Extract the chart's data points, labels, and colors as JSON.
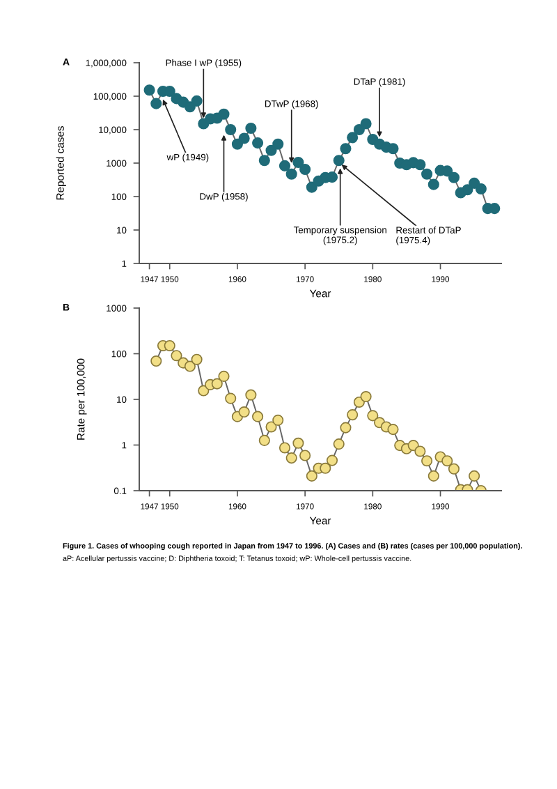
{
  "chart_data": [
    {
      "type": "line",
      "xlabel": "Year",
      "ylabel": "Reported cases",
      "log": "y",
      "grid": false,
      "marker": "circle",
      "line_style": "solid",
      "xlim": [
        1945.5,
        1999
      ],
      "xticks": [
        1947,
        1950,
        1960,
        1970,
        1980,
        1990
      ],
      "ylim": [
        1,
        1000000
      ],
      "yticks": [
        1,
        10,
        100,
        1000,
        {
          "value": 10000,
          "label": "10,000"
        },
        {
          "value": 100000,
          "label": "100,000"
        },
        {
          "value": 1000000,
          "label": "1,000,000"
        }
      ],
      "x": [
        1947,
        1948,
        1949,
        1950,
        1951,
        1952,
        1953,
        1954,
        1955,
        1956,
        1957,
        1958,
        1959,
        1960,
        1961,
        1962,
        1963,
        1964,
        1965,
        1966,
        1967,
        1968,
        1969,
        1970,
        1971,
        1972,
        1973,
        1974,
        1975,
        1976,
        1977,
        1978,
        1979,
        1980,
        1981,
        1982,
        1983,
        1984,
        1985,
        1986,
        1987,
        1988,
        1989,
        1990,
        1991,
        1992,
        1993,
        1994,
        1995,
        1996,
        1997,
        1998
      ],
      "series": [
        {
          "color": "#1f6b78",
          "values": [
            152000,
            60000,
            140000,
            140000,
            85000,
            66000,
            48000,
            72000,
            15000,
            21000,
            22000,
            29000,
            10000,
            3700,
            5500,
            11000,
            4000,
            1200,
            2400,
            3700,
            830,
            470,
            1050,
            650,
            190,
            290,
            370,
            380,
            1200,
            2700,
            5800,
            10000,
            15000,
            5100,
            3700,
            3000,
            2700,
            1000,
            900,
            1030,
            900,
            470,
            230,
            600,
            580,
            370,
            130,
            160,
            250,
            170,
            44,
            44
          ]
        }
      ],
      "annotations": [
        "A",
        {
          "text": "wP (1949)",
          "x": 1949,
          "y": 80000
        },
        {
          "text": "Phase I wP (1955)",
          "x": 1955,
          "y": 22000
        },
        {
          "text": "DwP (1958)",
          "x": 1958,
          "y": 7000
        },
        {
          "text": "DTwP (1968)",
          "x": 1968,
          "y": 1000
        },
        {
          "text": "DTaP (1981)",
          "x": 1981,
          "y": 6000
        },
        {
          "text": "Temporary suspension\n(1975.2)",
          "x": 1975.2,
          "y": 700
        },
        {
          "text": "Restart of DTaP\n(1975.4)",
          "x": 1975.4,
          "y": 900
        }
      ]
    },
    {
      "type": "line",
      "xlabel": "Year",
      "ylabel": "Rate per 100,000",
      "log": "y",
      "grid": false,
      "marker": "circle",
      "line_style": "solid",
      "xlim": [
        1945.5,
        1999
      ],
      "xticks": [
        1947,
        1950,
        1960,
        1970,
        1980,
        1990
      ],
      "ylim": [
        0.1,
        1000
      ],
      "yticks": [
        0.1,
        1,
        10,
        100,
        1000
      ],
      "x": [
        1948,
        1949,
        1950,
        1951,
        1952,
        1953,
        1954,
        1955,
        1956,
        1957,
        1958,
        1959,
        1960,
        1961,
        1962,
        1963,
        1964,
        1965,
        1966,
        1967,
        1968,
        1969,
        1970,
        1971,
        1972,
        1973,
        1974,
        1975,
        1976,
        1977,
        1978,
        1979,
        1980,
        1981,
        1982,
        1983,
        1984,
        1985,
        1986,
        1987,
        1988,
        1989,
        1990,
        1991,
        1992,
        1993,
        1994,
        1995,
        1996
      ],
      "series": [
        {
          "color": "#f2df87",
          "values": [
            69,
            150,
            150,
            91,
            63,
            53,
            75,
            15.5,
            21,
            22,
            32,
            10.5,
            4.2,
            5.3,
            12.5,
            4.2,
            1.26,
            2.5,
            3.5,
            0.87,
            0.52,
            1.1,
            0.59,
            0.21,
            0.31,
            0.31,
            0.46,
            1.05,
            2.4,
            4.6,
            8.7,
            11.5,
            4.4,
            3.1,
            2.5,
            2.2,
            0.98,
            0.83,
            0.98,
            0.73,
            0.45,
            0.21,
            0.55,
            0.45,
            0.3,
            0.105,
            0.105,
            0.21,
            0.1
          ]
        }
      ],
      "annotations": [
        "B",
        "Figure 1. Cases of whooping cough reported in Japan from 1947 to 1996. (A) Cases and (B) rates (cases per 100,000 population).",
        "aP: Acellular pertussis vaccine; D: Diphtheria toxoid; T: Tetanus toxoid; wP: Whole-cell pertussis vaccine."
      ]
    }
  ]
}
